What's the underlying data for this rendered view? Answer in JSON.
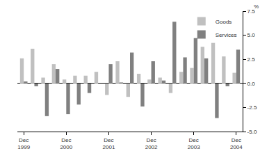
{
  "chart_data": {
    "type": "bar",
    "y_label": "%",
    "categories": [
      "Dec 1999",
      null,
      null,
      null,
      "Dec 2000",
      null,
      null,
      null,
      "Dec 2001",
      null,
      null,
      null,
      "Dec 2002",
      null,
      null,
      null,
      "Dec 2003",
      null,
      null,
      null,
      "Dec 2004"
    ],
    "series": [
      {
        "name": "Goods",
        "color": "#c0c0c0",
        "values": [
          2.6,
          3.6,
          0.6,
          2.0,
          0.4,
          0.8,
          0.8,
          1.2,
          -1.2,
          2.3,
          -1.4,
          1.0,
          0.4,
          0.6,
          -1.0,
          1.2,
          1.6,
          3.8,
          4.2,
          2.8,
          1.1
        ]
      },
      {
        "name": "Services",
        "color": "#808080",
        "values": [
          0.2,
          -0.3,
          -3.4,
          1.5,
          -3.2,
          -2.2,
          -1.0,
          0.0,
          2.0,
          0.1,
          3.2,
          -2.4,
          2.3,
          0.3,
          6.4,
          2.7,
          4.7,
          2.6,
          -3.6,
          -0.3,
          3.5
        ]
      }
    ],
    "ylim": [
      -5,
      7.5
    ],
    "yticks": [
      {
        "value": -5,
        "label": "-5.0"
      },
      {
        "value": -2.5,
        "label": "-2.5"
      },
      {
        "value": 0,
        "label": "0.0"
      },
      {
        "value": 2.5,
        "label": "2.5"
      },
      {
        "value": 5,
        "label": "5.0"
      },
      {
        "value": 7.5,
        "label": "7.5"
      }
    ],
    "grid": false,
    "legend": "top right"
  }
}
